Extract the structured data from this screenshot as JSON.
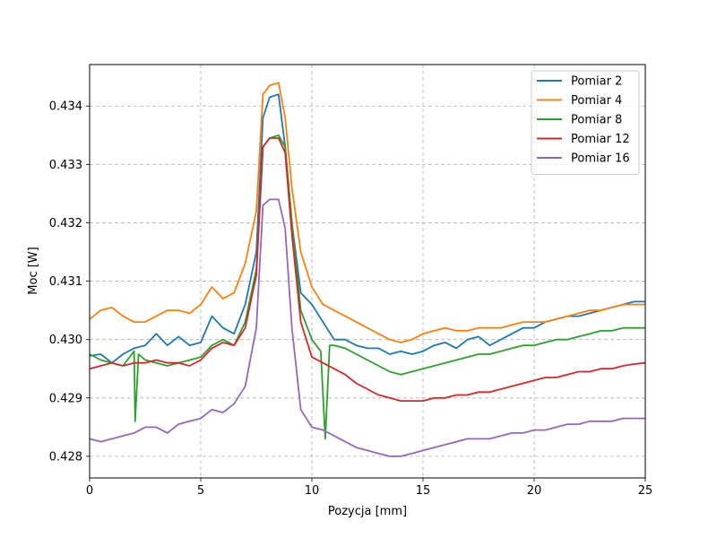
{
  "chart_data": {
    "type": "line",
    "title": "",
    "xlabel": "Pozycja [mm]",
    "ylabel": "Moc [W]",
    "xlim": [
      0,
      25
    ],
    "ylim": [
      0.42763,
      0.43471
    ],
    "xticks": [
      0,
      5,
      10,
      15,
      20,
      25
    ],
    "xtick_labels": [
      "0",
      "5",
      "10",
      "15",
      "20",
      "25"
    ],
    "yticks": [
      0.428,
      0.429,
      0.43,
      0.431,
      0.432,
      0.433,
      0.434
    ],
    "ytick_labels": [
      "0.428",
      "0.429",
      "0.430",
      "0.431",
      "0.432",
      "0.433",
      "0.434"
    ],
    "grid": true,
    "legend_position": "top-right",
    "series": [
      {
        "name": "Pomiar 2",
        "color": "#1f77b4",
        "x": [
          0,
          0.5,
          1,
          1.5,
          2,
          2.5,
          3,
          3.5,
          4,
          4.5,
          5,
          5.5,
          6,
          6.5,
          7,
          7.5,
          7.8,
          8.1,
          8.5,
          8.8,
          9.1,
          9.5,
          10,
          10.5,
          11,
          11.5,
          12,
          12.5,
          13,
          13.5,
          14,
          14.5,
          15,
          15.5,
          16,
          16.5,
          17,
          17.5,
          18,
          18.5,
          19,
          19.5,
          20,
          20.5,
          21,
          21.5,
          22,
          22.5,
          23,
          23.5,
          24,
          24.5,
          25
        ],
        "y": [
          0.42972,
          0.42975,
          0.4296,
          0.42975,
          0.42985,
          0.4299,
          0.4301,
          0.4299,
          0.43005,
          0.4299,
          0.42995,
          0.4304,
          0.4302,
          0.4301,
          0.4306,
          0.4315,
          0.4338,
          0.43415,
          0.4342,
          0.4333,
          0.432,
          0.4308,
          0.4306,
          0.4303,
          0.43,
          0.43,
          0.4299,
          0.42985,
          0.42985,
          0.42975,
          0.4298,
          0.42975,
          0.4298,
          0.4299,
          0.42995,
          0.42985,
          0.43,
          0.43005,
          0.4299,
          0.43,
          0.4301,
          0.4302,
          0.4302,
          0.4303,
          0.43035,
          0.4304,
          0.4304,
          0.43045,
          0.4305,
          0.43055,
          0.4306,
          0.43065,
          0.43065
        ]
      },
      {
        "name": "Pomiar 4",
        "color": "#ff7f0e",
        "x": [
          0,
          0.5,
          1,
          1.5,
          2,
          2.5,
          3,
          3.5,
          4,
          4.5,
          5,
          5.5,
          6,
          6.5,
          7,
          7.5,
          7.8,
          8.1,
          8.5,
          8.8,
          9.1,
          9.5,
          10,
          10.5,
          11,
          11.5,
          12,
          12.5,
          13,
          13.5,
          14,
          14.5,
          15,
          15.5,
          16,
          16.5,
          17,
          17.5,
          18,
          18.5,
          19,
          19.5,
          20,
          20.5,
          21,
          21.5,
          22,
          22.5,
          23,
          23.5,
          24,
          24.5,
          25
        ],
        "y": [
          0.43035,
          0.4305,
          0.43055,
          0.4304,
          0.4303,
          0.4303,
          0.4304,
          0.4305,
          0.4305,
          0.43045,
          0.4306,
          0.4309,
          0.4307,
          0.4308,
          0.4313,
          0.4322,
          0.4342,
          0.43435,
          0.4344,
          0.4338,
          0.4326,
          0.4315,
          0.4309,
          0.4306,
          0.4305,
          0.4304,
          0.4303,
          0.4302,
          0.4301,
          0.43,
          0.42995,
          0.43,
          0.4301,
          0.43015,
          0.4302,
          0.43015,
          0.43015,
          0.4302,
          0.4302,
          0.4302,
          0.43025,
          0.4303,
          0.4303,
          0.4303,
          0.43035,
          0.4304,
          0.43045,
          0.4305,
          0.4305,
          0.43055,
          0.4306,
          0.4306,
          0.4306
        ]
      },
      {
        "name": "Pomiar 8",
        "color": "#2ca02c",
        "x": [
          0,
          0.5,
          1,
          1.5,
          2,
          2.05,
          2.2,
          2.5,
          3,
          3.5,
          4,
          4.5,
          5,
          5.5,
          6,
          6.5,
          7,
          7.5,
          7.8,
          8.1,
          8.5,
          8.8,
          9.1,
          9.5,
          10,
          10.4,
          10.6,
          10.8,
          11,
          11.5,
          12,
          12.5,
          13,
          13.5,
          14,
          14.5,
          15,
          15.5,
          16,
          16.5,
          17,
          17.5,
          18,
          18.5,
          19,
          19.5,
          20,
          20.5,
          21,
          21.5,
          22,
          22.5,
          23,
          23.5,
          24,
          24.5,
          25
        ],
        "y": [
          0.42975,
          0.42965,
          0.4296,
          0.42955,
          0.4298,
          0.4286,
          0.42975,
          0.42965,
          0.4296,
          0.42955,
          0.4296,
          0.42965,
          0.4297,
          0.4299,
          0.43,
          0.4299,
          0.4303,
          0.4312,
          0.4333,
          0.43345,
          0.4335,
          0.4333,
          0.432,
          0.4305,
          0.43,
          0.4298,
          0.4283,
          0.4299,
          0.4299,
          0.42985,
          0.42975,
          0.42965,
          0.42955,
          0.42945,
          0.4294,
          0.42945,
          0.4295,
          0.42955,
          0.4296,
          0.42965,
          0.4297,
          0.42975,
          0.42975,
          0.4298,
          0.42985,
          0.4299,
          0.4299,
          0.42995,
          0.43,
          0.43,
          0.43005,
          0.4301,
          0.43015,
          0.43015,
          0.4302,
          0.4302,
          0.4302
        ]
      },
      {
        "name": "Pomiar 12",
        "color": "#d62728",
        "x": [
          0,
          0.5,
          1,
          1.5,
          2,
          2.5,
          3,
          3.5,
          4,
          4.5,
          5,
          5.5,
          6,
          6.5,
          7,
          7.5,
          7.8,
          8.1,
          8.5,
          8.8,
          9.1,
          9.5,
          10,
          10.5,
          11,
          11.5,
          12,
          12.5,
          13,
          13.5,
          14,
          14.5,
          15,
          15.5,
          16,
          16.5,
          17,
          17.5,
          18,
          18.5,
          19,
          19.5,
          20,
          20.5,
          21,
          21.5,
          22,
          22.5,
          23,
          23.5,
          24,
          24.5,
          25
        ],
        "y": [
          0.4295,
          0.42955,
          0.4296,
          0.42955,
          0.4296,
          0.4296,
          0.42965,
          0.4296,
          0.4296,
          0.42955,
          0.42965,
          0.42985,
          0.42995,
          0.4299,
          0.4302,
          0.4311,
          0.4333,
          0.43345,
          0.43345,
          0.4332,
          0.4318,
          0.4303,
          0.4297,
          0.4296,
          0.4295,
          0.4294,
          0.42925,
          0.42915,
          0.42905,
          0.429,
          0.42895,
          0.42895,
          0.42895,
          0.429,
          0.429,
          0.42905,
          0.42905,
          0.4291,
          0.4291,
          0.42915,
          0.4292,
          0.42925,
          0.4293,
          0.42935,
          0.42935,
          0.4294,
          0.42945,
          0.42945,
          0.4295,
          0.4295,
          0.42955,
          0.42958,
          0.4296
        ]
      },
      {
        "name": "Pomiar 16",
        "color": "#9467bd",
        "x": [
          0,
          0.5,
          1,
          1.5,
          2,
          2.5,
          3,
          3.5,
          4,
          4.5,
          5,
          5.5,
          6,
          6.5,
          7,
          7.5,
          7.8,
          8.1,
          8.5,
          8.8,
          9.1,
          9.5,
          10,
          10.5,
          11,
          11.5,
          12,
          12.5,
          13,
          13.5,
          14,
          14.5,
          15,
          15.5,
          16,
          16.5,
          17,
          17.5,
          18,
          18.5,
          19,
          19.5,
          20,
          20.5,
          21,
          21.5,
          22,
          22.5,
          23,
          23.5,
          24,
          24.5,
          25
        ],
        "y": [
          0.4283,
          0.42825,
          0.4283,
          0.42835,
          0.4284,
          0.4285,
          0.4285,
          0.4284,
          0.42855,
          0.4286,
          0.42865,
          0.4288,
          0.42875,
          0.4289,
          0.4292,
          0.4302,
          0.4323,
          0.4324,
          0.4324,
          0.4319,
          0.4302,
          0.4288,
          0.4285,
          0.42845,
          0.42835,
          0.42825,
          0.42815,
          0.4281,
          0.42805,
          0.428,
          0.428,
          0.42805,
          0.4281,
          0.42815,
          0.4282,
          0.42825,
          0.4283,
          0.4283,
          0.4283,
          0.42835,
          0.4284,
          0.4284,
          0.42845,
          0.42845,
          0.4285,
          0.42855,
          0.42855,
          0.4286,
          0.4286,
          0.4286,
          0.42865,
          0.42865,
          0.42865
        ]
      }
    ]
  }
}
